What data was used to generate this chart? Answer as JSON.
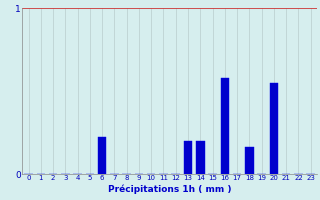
{
  "hours": [
    0,
    1,
    2,
    3,
    4,
    5,
    6,
    7,
    8,
    9,
    10,
    11,
    12,
    13,
    14,
    15,
    16,
    17,
    18,
    19,
    20,
    21,
    22,
    23
  ],
  "values": [
    0,
    0,
    0,
    0,
    0,
    0,
    0.22,
    0,
    0,
    0,
    0,
    0,
    0,
    0.2,
    0.2,
    0,
    0.58,
    0,
    0.16,
    0,
    0.55,
    0,
    0,
    0
  ],
  "bar_color": "#0000cc",
  "bar_edge_color": "#0000ee",
  "background_color": "#d6eeee",
  "grid_color": "#b8cccc",
  "tick_color": "#0000bb",
  "xlabel": "Précipitations 1h ( mm )",
  "xlabel_color": "#0000cc",
  "ylim": [
    0,
    1.0
  ],
  "xlim": [
    -0.5,
    23.5
  ],
  "spine_color": "#888888",
  "hline_color": "#cc3333"
}
